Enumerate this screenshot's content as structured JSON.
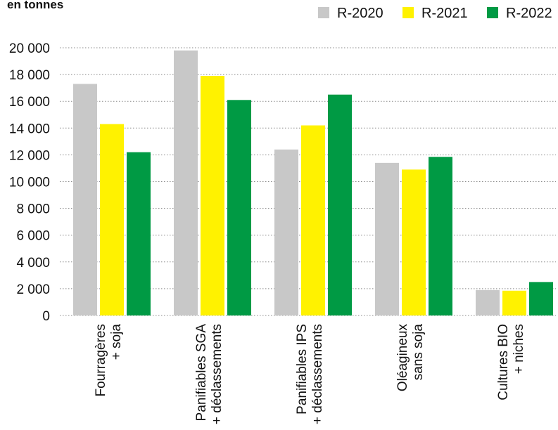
{
  "chart_data": {
    "type": "bar",
    "subtitle": "en tonnes",
    "categories": [
      [
        "Fourragères",
        "+ soja"
      ],
      [
        "Panifiables SGA",
        "+ déclassements"
      ],
      [
        "Panifiables IPS",
        "+ déclassements"
      ],
      [
        "Oléagineux",
        "sans soja"
      ],
      [
        "Cultures BIO",
        "+ niches"
      ]
    ],
    "series": [
      {
        "name": "R-2020",
        "color": "#c8c8c8",
        "values": [
          17300,
          19800,
          12400,
          11400,
          1900
        ]
      },
      {
        "name": "R-2021",
        "color": "#fff200",
        "values": [
          14300,
          17900,
          14200,
          10900,
          1850
        ]
      },
      {
        "name": "R-2022",
        "color": "#009a44",
        "values": [
          12200,
          16100,
          16500,
          11850,
          2500
        ]
      }
    ],
    "ylim": [
      0,
      20000
    ],
    "yticks": [
      0,
      2000,
      4000,
      6000,
      8000,
      10000,
      12000,
      14000,
      16000,
      18000,
      20000
    ],
    "ytick_labels": [
      "0",
      "2 000",
      "4 000",
      "6 000",
      "8 000",
      "10 000",
      "12 000",
      "14 000",
      "16 000",
      "18 000",
      "20 000"
    ],
    "grid": "dotted horizontal",
    "legend_position": "top-right"
  }
}
